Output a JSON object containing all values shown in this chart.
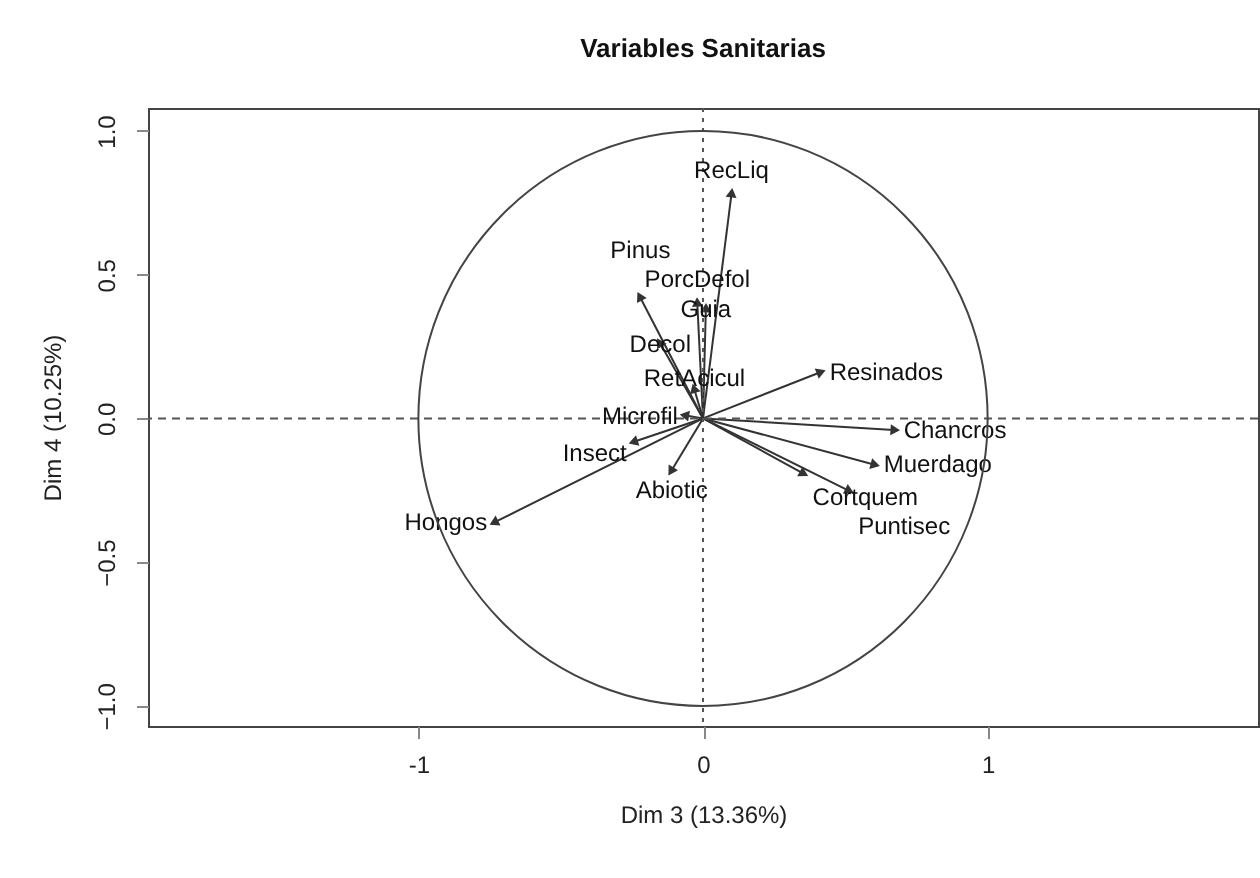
{
  "chart_data": {
    "type": "scatter",
    "title": "Variables Sanitarias",
    "xlabel": "Dim 3 (13.36%)",
    "ylabel": "Dim 4 (10.25%)",
    "xlim": [
      -1.95,
      1.95
    ],
    "ylim": [
      -1.07,
      1.08
    ],
    "xticks": [
      -1,
      0,
      1
    ],
    "yticks": [
      {
        "value": -1,
        "label": "−1.0"
      },
      {
        "value": -0.5,
        "label": "−0.5"
      },
      {
        "value": 0,
        "label": "0.0"
      },
      {
        "value": 0.5,
        "label": "0.5"
      },
      {
        "value": 1,
        "label": "1.0"
      }
    ],
    "x": [
      0.1,
      -0.02,
      0.01,
      -0.22,
      -0.15,
      -0.03,
      0.41,
      -0.06,
      -0.24,
      0.67,
      0.6,
      0.35,
      0.51,
      -0.11,
      -0.73
    ],
    "series": [
      {
        "color": "#333333",
        "values": [
          0.78,
          0.4,
          0.38,
          0.42,
          0.26,
          0.1,
          0.16,
          0.01,
          -0.08,
          -0.04,
          -0.16,
          -0.19,
          -0.25,
          -0.18,
          -0.36
        ]
      }
    ],
    "marker": "triangle",
    "ref_lines": [
      {
        "axis": "x",
        "value": 0,
        "line_style": "dotted"
      },
      {
        "axis": "y",
        "value": 0,
        "line_style": "dashed"
      }
    ],
    "annotations": [
      {
        "text": "RecLiq",
        "x": 0.1,
        "y": 0.78
      },
      {
        "text": "PorcDefol",
        "x": -0.02,
        "y": 0.4
      },
      {
        "text": "Guia",
        "x": 0.01,
        "y": 0.38
      },
      {
        "text": "Pinus",
        "x": -0.22,
        "y": 0.42
      },
      {
        "text": "Decol",
        "x": -0.15,
        "y": 0.26
      },
      {
        "text": "RetAcicul",
        "x": -0.03,
        "y": 0.1
      },
      {
        "text": "Resinados",
        "x": 0.41,
        "y": 0.16
      },
      {
        "text": "Microfil",
        "x": -0.06,
        "y": 0.01
      },
      {
        "text": "Insect",
        "x": -0.24,
        "y": -0.08
      },
      {
        "text": "Chancros",
        "x": 0.67,
        "y": -0.04
      },
      {
        "text": "Muerdago",
        "x": 0.6,
        "y": -0.16
      },
      {
        "text": "Cortquem",
        "x": 0.35,
        "y": -0.19
      },
      {
        "text": "Puntisec",
        "x": 0.51,
        "y": -0.25
      },
      {
        "text": "Abiotic",
        "x": -0.11,
        "y": -0.18
      },
      {
        "text": "Hongos",
        "x": -0.73,
        "y": -0.36
      }
    ]
  }
}
